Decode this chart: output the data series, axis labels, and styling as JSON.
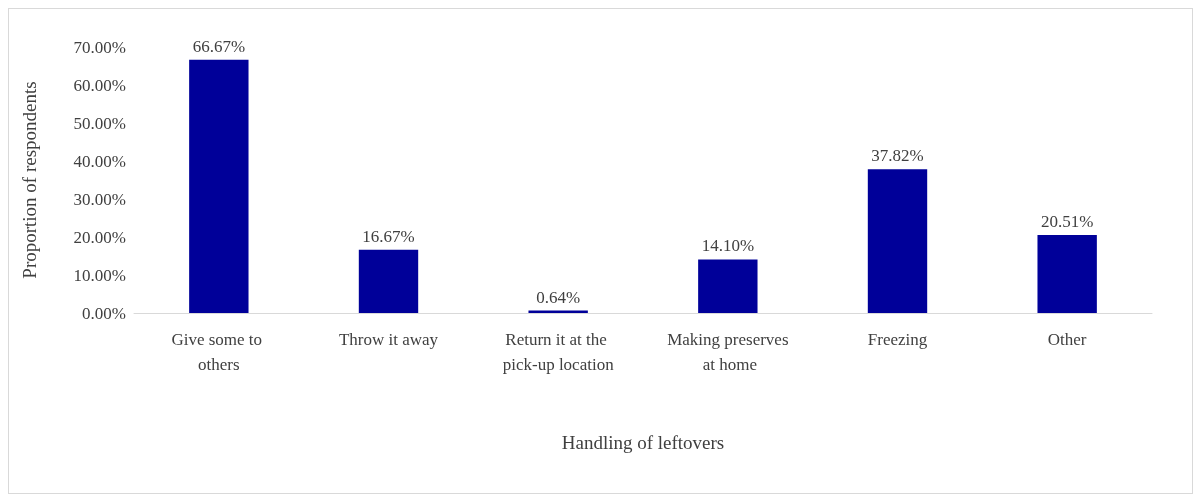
{
  "chart_data": {
    "type": "bar",
    "xlabel": "Handling of leftovers",
    "ylabel": "Proportion of respondents",
    "categories": [
      "Give some to others",
      "Throw it away",
      "Return it at the pick-up location",
      "Making preserves at home",
      "Freezing",
      "Other"
    ],
    "values": [
      66.67,
      16.67,
      0.64,
      14.1,
      37.82,
      20.51
    ],
    "value_labels": [
      "66.67%",
      "16.67%",
      "0.64%",
      "14.10%",
      "37.82%",
      "20.51%"
    ],
    "color": "#000099",
    "ylim": [
      0,
      70
    ],
    "yticks": [
      {
        "value": 0,
        "label": "0.00%"
      },
      {
        "value": 10,
        "label": "10.00%"
      },
      {
        "value": 20,
        "label": "20.00%"
      },
      {
        "value": 30,
        "label": "30.00%"
      },
      {
        "value": 40,
        "label": "40.00%"
      },
      {
        "value": 50,
        "label": "50.00%"
      },
      {
        "value": 60,
        "label": "60.00%"
      },
      {
        "value": 70,
        "label": "70.00%"
      }
    ],
    "grid": false
  }
}
